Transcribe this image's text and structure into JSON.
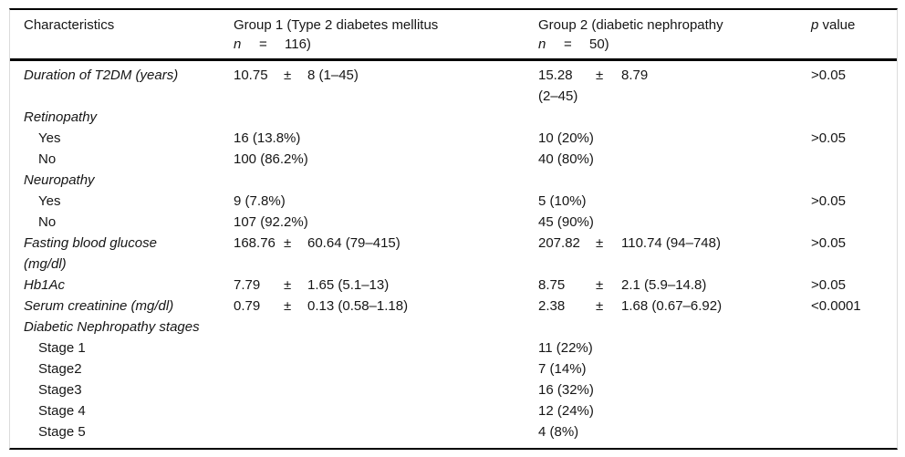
{
  "table": {
    "header": {
      "characteristics": "Characteristics",
      "group1_line1": "Group 1 (Type 2 diabetes mellitus",
      "group1_n": "n",
      "group1_eq": "=",
      "group1_count": "116)",
      "group2_line1": "Group 2 (diabetic nephropathy",
      "group2_n": "n",
      "group2_eq": "=",
      "group2_count": "50)",
      "p_italic": "p",
      "p_rest": " value"
    },
    "rows": [
      {
        "kind": "measure",
        "label": "Duration of T2DM (years)",
        "g1": {
          "v1": "10.75",
          "pm": "±",
          "v2": "8 (1–45)"
        },
        "g2": {
          "v1": "15.28",
          "pm": "±",
          "v2": "8.79",
          "line2": "(2–45)"
        },
        "p": ">0.05"
      },
      {
        "kind": "section",
        "label": "Retinopathy"
      },
      {
        "kind": "sub",
        "label": "Yes",
        "g1": {
          "text": "16 (13.8%)"
        },
        "g2": {
          "text": "10 (20%)"
        },
        "p": ">0.05"
      },
      {
        "kind": "sub",
        "label": "No",
        "g1": {
          "text": "100 (86.2%)"
        },
        "g2": {
          "text": "40 (80%)"
        }
      },
      {
        "kind": "section",
        "label": "Neuropathy"
      },
      {
        "kind": "sub",
        "label": "Yes",
        "g1": {
          "text": "9 (7.8%)"
        },
        "g2": {
          "text": "5 (10%)"
        },
        "p": ">0.05"
      },
      {
        "kind": "sub",
        "label": "No",
        "g1": {
          "text": "107 (92.2%)"
        },
        "g2": {
          "text": "45 (90%)"
        }
      },
      {
        "kind": "measure",
        "label": "Fasting blood glucose",
        "label2": "(mg/dl)",
        "g1": {
          "v1": "168.76",
          "pm": "±",
          "v2": "60.64 (79–415)"
        },
        "g2": {
          "v1": "207.82",
          "pm": "±",
          "v2": "110.74 (94–748)"
        },
        "p": ">0.05"
      },
      {
        "kind": "measure",
        "label": "Hb1Ac",
        "g1": {
          "v1": "7.79",
          "pm": "±",
          "v2": "1.65 (5.1–13)"
        },
        "g2": {
          "v1": "8.75",
          "pm": "±",
          "v2": "2.1 (5.9–14.8)"
        },
        "p": ">0.05"
      },
      {
        "kind": "measure",
        "label": "Serum creatinine (mg/dl)",
        "g1": {
          "v1": "0.79",
          "pm": "±",
          "v2": "0.13 (0.58–1.18)"
        },
        "g2": {
          "v1": "2.38",
          "pm": "±",
          "v2": "1.68 (0.67–6.92)"
        },
        "p": "<0.0001"
      },
      {
        "kind": "section",
        "label": "Diabetic Nephropathy stages"
      },
      {
        "kind": "sub",
        "label": "Stage 1",
        "g2": {
          "text": "11 (22%)"
        }
      },
      {
        "kind": "sub",
        "label": "Stage2",
        "g2": {
          "text": "7 (14%)"
        }
      },
      {
        "kind": "sub",
        "label": "Stage3",
        "g2": {
          "text": "16 (32%)"
        }
      },
      {
        "kind": "sub",
        "label": "Stage 4",
        "g2": {
          "text": "12 (24%)"
        }
      },
      {
        "kind": "sub",
        "label": "Stage 5",
        "g2": {
          "text": "4 (8%)"
        }
      }
    ]
  }
}
